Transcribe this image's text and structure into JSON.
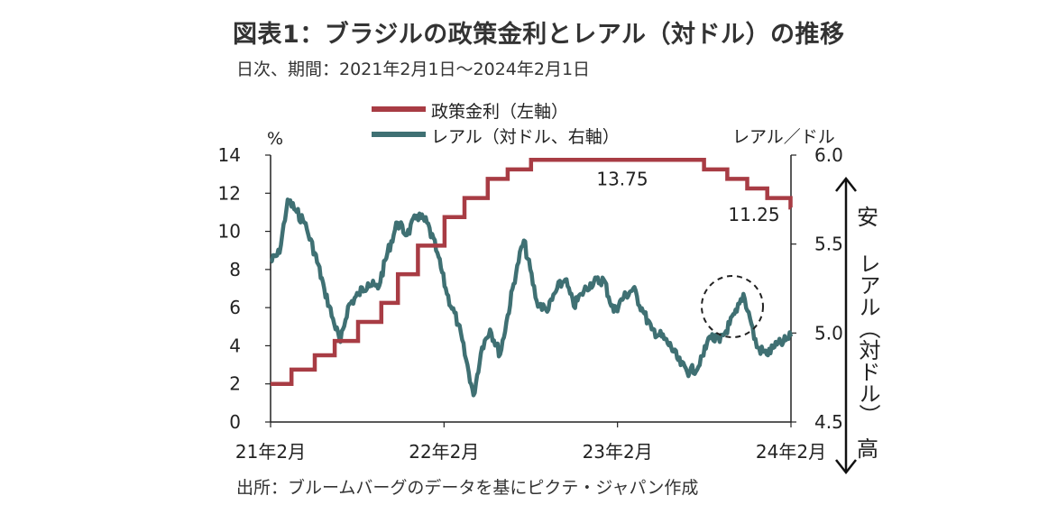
{
  "header": {
    "title": "図表1：ブラジルの政策金利とレアル（対ドル）の推移",
    "subtitle": "日次、期間：2021年2月1日～2024年2月1日"
  },
  "footer": {
    "source": "出所：ブルームバーグのデータを基にピクテ・ジャパン作成"
  },
  "colors": {
    "policy_rate": "#a83c44",
    "brl": "#3f7073",
    "axis": "#222222"
  },
  "chart_data": {
    "type": "line",
    "x_ticks": [
      "21年2月",
      "22年2月",
      "23年2月",
      "24年2月"
    ],
    "y_left": {
      "label": "%",
      "ticks": [
        "0",
        "2",
        "4",
        "6",
        "8",
        "10",
        "12",
        "14"
      ],
      "range": [
        0,
        14
      ]
    },
    "y_right": {
      "label": "レアル／ドル",
      "ticks": [
        "4.5",
        "5.0",
        "5.5",
        "6.0"
      ],
      "range": [
        4.5,
        6.0
      ],
      "annotation_top": "安",
      "annotation_mid": "レアル（対ドル）",
      "annotation_bottom": "高"
    },
    "legend": "top-center",
    "series": [
      {
        "name": "政策金利（左軸）",
        "axis": "left",
        "x": [
          "2021-02-01",
          "2021-03-17",
          "2021-05-05",
          "2021-06-16",
          "2021-08-04",
          "2021-09-22",
          "2021-10-27",
          "2021-12-08",
          "2022-02-02",
          "2022-03-16",
          "2022-05-04",
          "2022-06-15",
          "2022-08-03",
          "2023-08-02",
          "2023-09-20",
          "2023-11-01",
          "2023-12-13",
          "2024-01-31"
        ],
        "values": [
          2.0,
          2.75,
          3.5,
          4.25,
          5.25,
          6.25,
          7.75,
          9.25,
          10.75,
          11.75,
          12.75,
          13.25,
          13.75,
          13.25,
          12.75,
          12.25,
          11.75,
          11.25
        ]
      },
      {
        "name": "レアル（対ドル、右軸）",
        "axis": "right",
        "x": [
          "2021-02-01",
          "2021-02-20",
          "2021-03-09",
          "2021-03-28",
          "2021-04-13",
          "2021-05-05",
          "2021-05-25",
          "2021-06-15",
          "2021-06-28",
          "2021-07-14",
          "2021-08-05",
          "2021-08-25",
          "2021-09-15",
          "2021-10-05",
          "2021-10-26",
          "2021-11-15",
          "2021-12-06",
          "2021-12-27",
          "2022-01-18",
          "2022-02-07",
          "2022-03-03",
          "2022-03-25",
          "2022-04-04",
          "2022-04-22",
          "2022-05-09",
          "2022-05-30",
          "2022-06-15",
          "2022-07-05",
          "2022-07-19",
          "2022-08-15",
          "2022-09-06",
          "2022-09-27",
          "2022-10-14",
          "2022-11-01",
          "2022-11-17",
          "2022-12-06",
          "2023-01-03",
          "2023-01-24",
          "2023-02-14",
          "2023-03-06",
          "2023-03-27",
          "2023-04-14",
          "2023-05-05",
          "2023-05-25",
          "2023-06-14",
          "2023-07-03",
          "2023-07-24",
          "2023-08-14",
          "2023-09-04",
          "2023-09-25",
          "2023-10-10",
          "2023-10-24",
          "2023-11-07",
          "2023-11-21",
          "2023-12-12",
          "2023-12-28",
          "2024-01-16",
          "2024-02-01"
        ],
        "values": [
          5.4,
          5.45,
          5.75,
          5.68,
          5.62,
          5.45,
          5.25,
          5.05,
          4.95,
          5.15,
          5.22,
          5.28,
          5.25,
          5.45,
          5.62,
          5.55,
          5.66,
          5.62,
          5.45,
          5.22,
          5.05,
          4.78,
          4.65,
          4.92,
          5.02,
          4.88,
          5.1,
          5.38,
          5.52,
          5.18,
          5.12,
          5.25,
          5.3,
          5.15,
          5.22,
          5.28,
          5.3,
          5.12,
          5.2,
          5.25,
          5.12,
          5.02,
          4.98,
          4.92,
          4.82,
          4.78,
          4.82,
          4.98,
          4.95,
          5.05,
          5.12,
          5.22,
          5.08,
          4.92,
          4.88,
          4.92,
          4.95,
          4.98
        ]
      }
    ],
    "annotations": [
      {
        "text": "13.75",
        "series": "政策金利（左軸）",
        "x": "2022-11-01"
      },
      {
        "text": "11.25",
        "series": "政策金利（左軸）",
        "x": "2023-12-28"
      }
    ]
  }
}
